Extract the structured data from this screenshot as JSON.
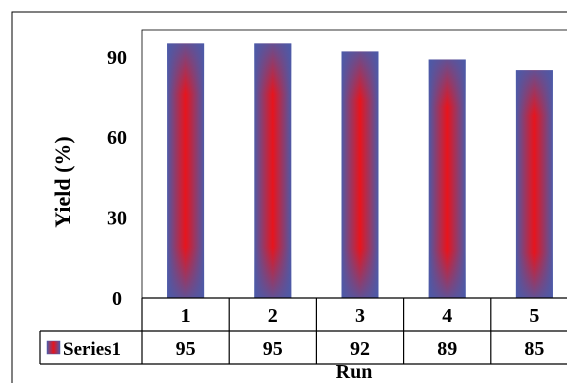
{
  "chart_data": {
    "type": "bar",
    "categories": [
      "1",
      "2",
      "3",
      "4",
      "5"
    ],
    "series": [
      {
        "name": "Series1",
        "values": [
          95,
          95,
          92,
          89,
          85
        ]
      }
    ],
    "xlabel": "Run",
    "ylabel": "Yield (%)",
    "ylim": [
      0,
      100
    ],
    "yticks": [
      0,
      30,
      60,
      90
    ],
    "grid": false,
    "legend": "data-table",
    "bar_fill": {
      "edge": "#4c5aa8",
      "center": "#e8141c"
    }
  }
}
